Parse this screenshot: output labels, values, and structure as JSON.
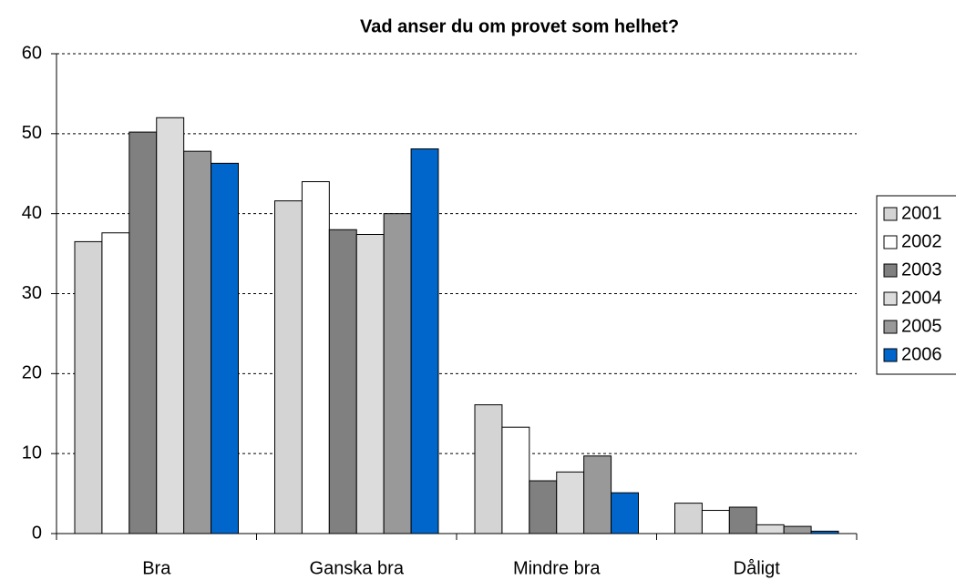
{
  "chart_data": {
    "type": "bar",
    "title": "Vad anser du om provet som helhet?",
    "categories": [
      "Bra",
      "Ganska bra",
      "Mindre bra",
      "Dåligt"
    ],
    "series": [
      {
        "name": "2001",
        "color": "#d4d4d4",
        "values": [
          36.5,
          41.6,
          16.1,
          3.8
        ]
      },
      {
        "name": "2002",
        "color": "#ffffff",
        "values": [
          37.6,
          44.0,
          13.3,
          2.9
        ]
      },
      {
        "name": "2003",
        "color": "#808080",
        "values": [
          50.2,
          38.0,
          6.6,
          3.3
        ]
      },
      {
        "name": "2004",
        "color": "#dcdcdc",
        "values": [
          52.0,
          37.4,
          7.7,
          1.1
        ]
      },
      {
        "name": "2005",
        "color": "#999999",
        "values": [
          47.8,
          40.0,
          9.7,
          0.9
        ]
      },
      {
        "name": "2006",
        "color": "#0066cc",
        "values": [
          46.3,
          48.1,
          5.1,
          0.3
        ]
      }
    ],
    "ylim": [
      0,
      60
    ],
    "yticks": [
      0,
      10,
      20,
      30,
      40,
      50,
      60
    ],
    "grid": true,
    "legend": "right"
  }
}
